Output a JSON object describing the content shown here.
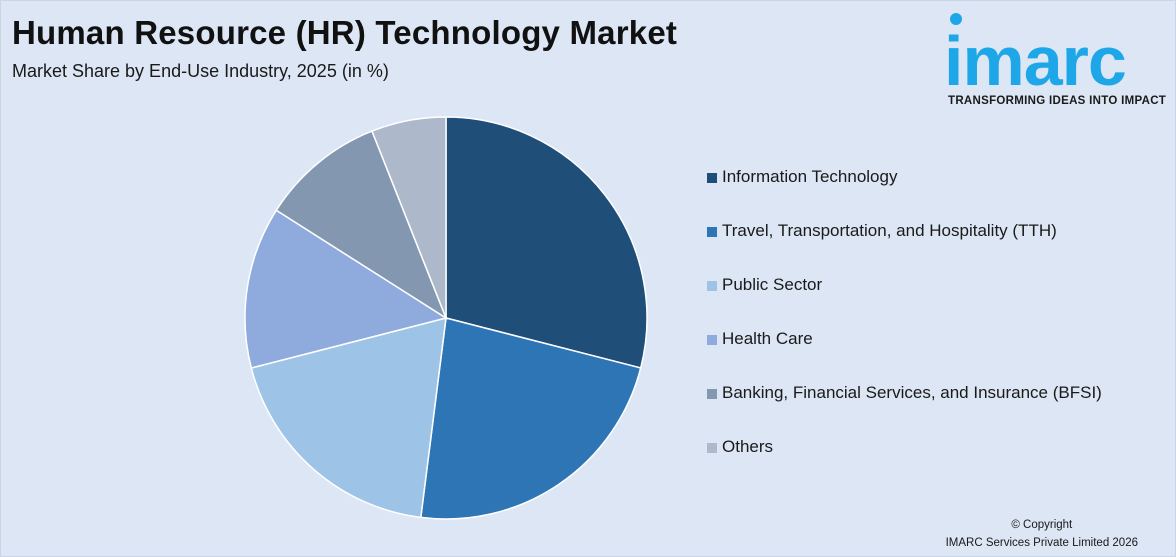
{
  "header": {
    "title": "Human Resource (HR) Technology Market",
    "subtitle": "Market Share by End-Use Industry, 2025 (in %)"
  },
  "logo": {
    "word": "imarc",
    "tagline": "TRANSFORMING IDEAS INTO IMPACT",
    "color": "#1ea7e8"
  },
  "footer": {
    "copyright": "© Copyright",
    "company": "IMARC Services Private Limited 2026"
  },
  "chart_data": {
    "type": "pie",
    "title": "Human Resource (HR) Technology Market",
    "subtitle": "Market Share by End-Use Industry, 2025 (in %)",
    "legend_position": "right",
    "slices": [
      {
        "label": "Information Technology",
        "value": 29,
        "color": "#1f4e79"
      },
      {
        "label": "Travel, Transportation, and Hospitality (TTH)",
        "value": 23,
        "color": "#2e75b6"
      },
      {
        "label": "Public Sector",
        "value": 19,
        "color": "#9dc3e6"
      },
      {
        "label": "Health Care",
        "value": 13,
        "color": "#8faadc"
      },
      {
        "label": "Banking, Financial Services, and Insurance (BFSI)",
        "value": 10,
        "color": "#8497b0"
      },
      {
        "label": "Others",
        "value": 6,
        "color": "#adb9ca"
      }
    ]
  }
}
